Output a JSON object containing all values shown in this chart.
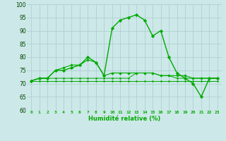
{
  "xlabel": "Humidité relative (%)",
  "background_color": "#cce8e8",
  "grid_color": "#aacccc",
  "line_color": "#00aa00",
  "xlim": [
    -0.5,
    23.5
  ],
  "ylim": [
    60,
    100
  ],
  "xticks": [
    0,
    1,
    2,
    3,
    4,
    5,
    6,
    7,
    8,
    9,
    10,
    11,
    12,
    13,
    14,
    15,
    16,
    17,
    18,
    19,
    20,
    21,
    22,
    23
  ],
  "yticks": [
    60,
    65,
    70,
    75,
    80,
    85,
    90,
    95,
    100
  ],
  "series": [
    [
      71,
      72,
      72,
      75,
      75,
      76,
      77,
      80,
      78,
      73,
      91,
      94,
      95,
      96,
      94,
      88,
      90,
      80,
      74,
      72,
      70,
      65,
      72,
      72
    ],
    [
      71,
      72,
      72,
      75,
      76,
      77,
      77,
      79,
      78,
      73,
      74,
      74,
      74,
      74,
      74,
      74,
      73,
      73,
      73,
      73,
      72,
      72,
      72,
      72
    ],
    [
      71,
      72,
      72,
      72,
      72,
      72,
      72,
      72,
      72,
      72,
      72,
      72,
      72,
      74,
      74,
      74,
      73,
      73,
      72,
      72,
      72,
      72,
      72,
      72
    ],
    [
      71,
      71,
      71,
      71,
      71,
      71,
      71,
      71,
      71,
      71,
      71,
      71,
      71,
      71,
      71,
      71,
      71,
      71,
      71,
      71,
      71,
      71,
      71,
      71
    ]
  ]
}
